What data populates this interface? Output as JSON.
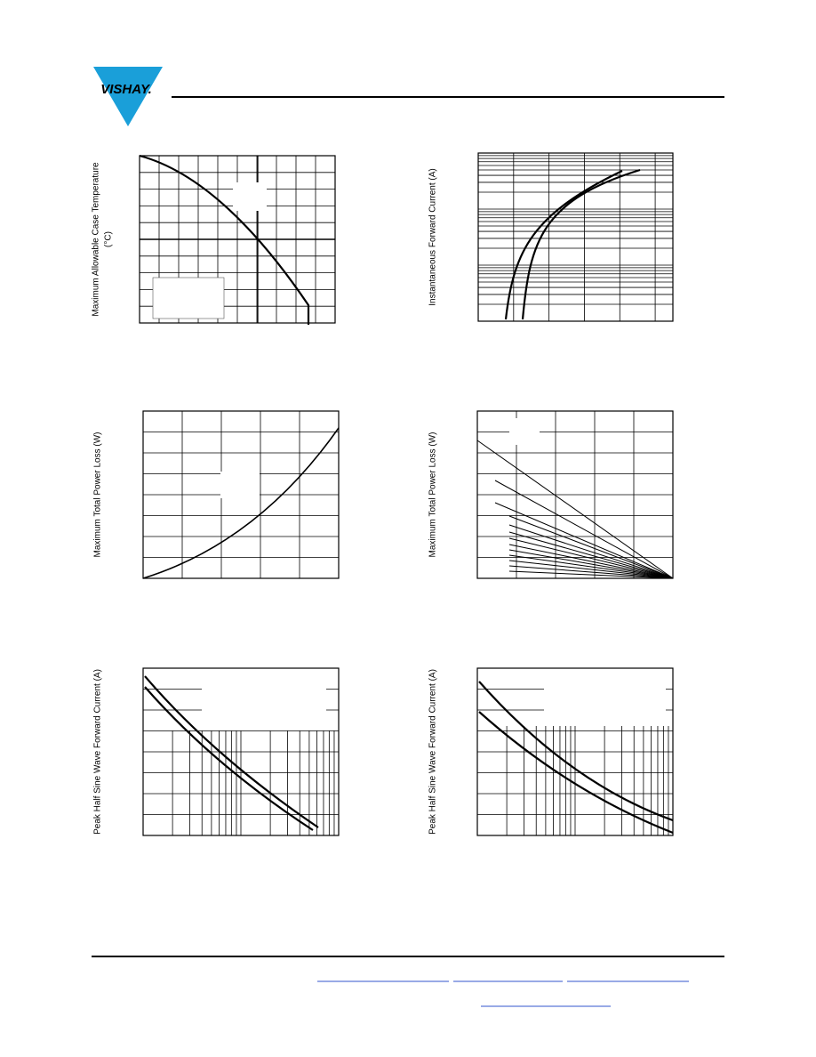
{
  "header": {
    "logo": "VISHAY."
  },
  "charts": [
    {
      "y_label": [
        "Maximum Allowable Case Temperature",
        "(°C)"
      ]
    },
    {
      "y_label": [
        "Instantaneous Forward Current (A)"
      ]
    },
    {
      "y_label": [
        "Maximum Total Power Loss (W)"
      ]
    },
    {
      "y_label": [
        "Maximum Total Power Loss (W)"
      ]
    },
    {
      "y_label": [
        "Peak Half Sine Wave Forward Current (A)"
      ]
    },
    {
      "y_label": [
        "Peak Half Sine Wave Forward Current (A)"
      ]
    }
  ]
}
